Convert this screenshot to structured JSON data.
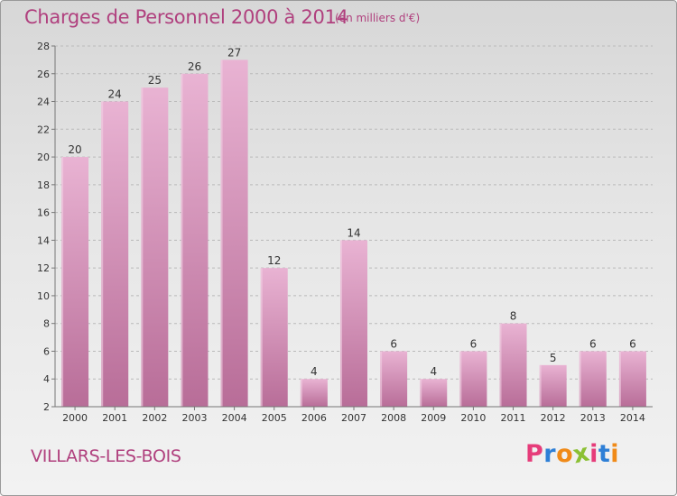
{
  "header": {
    "title": "Charges de Personnel 2000 à 2014",
    "subtitle": "(en milliers d'€)"
  },
  "footer": {
    "commune": "VILLARS-LES-BOIS",
    "logo": "Proxiti"
  },
  "colors": {
    "bar_light": "#e9b3d3",
    "bar_dark": "#b86d98",
    "text": "#b0407e",
    "logo_letters": [
      "#e63c7a",
      "#2e7fd6",
      "#f08a18",
      "#8bc034",
      "#e63c7a",
      "#2e7fd6",
      "#f08a18"
    ]
  },
  "chart_data": {
    "type": "bar",
    "title": "Charges de Personnel 2000 à 2014",
    "subtitle": "(en milliers d'€)",
    "categories": [
      "2000",
      "2001",
      "2002",
      "2003",
      "2004",
      "2005",
      "2006",
      "2007",
      "2008",
      "2009",
      "2010",
      "2011",
      "2012",
      "2013",
      "2014"
    ],
    "values": [
      20,
      24,
      25,
      26,
      27,
      12,
      4,
      14,
      6,
      4,
      6,
      8,
      5,
      6,
      6
    ],
    "ylim": [
      2,
      28
    ],
    "yticks": [
      2,
      4,
      6,
      8,
      10,
      12,
      14,
      16,
      18,
      20,
      22,
      24,
      26,
      28
    ],
    "grid": true,
    "data_labels": true,
    "xlabel": "",
    "ylabel": ""
  }
}
